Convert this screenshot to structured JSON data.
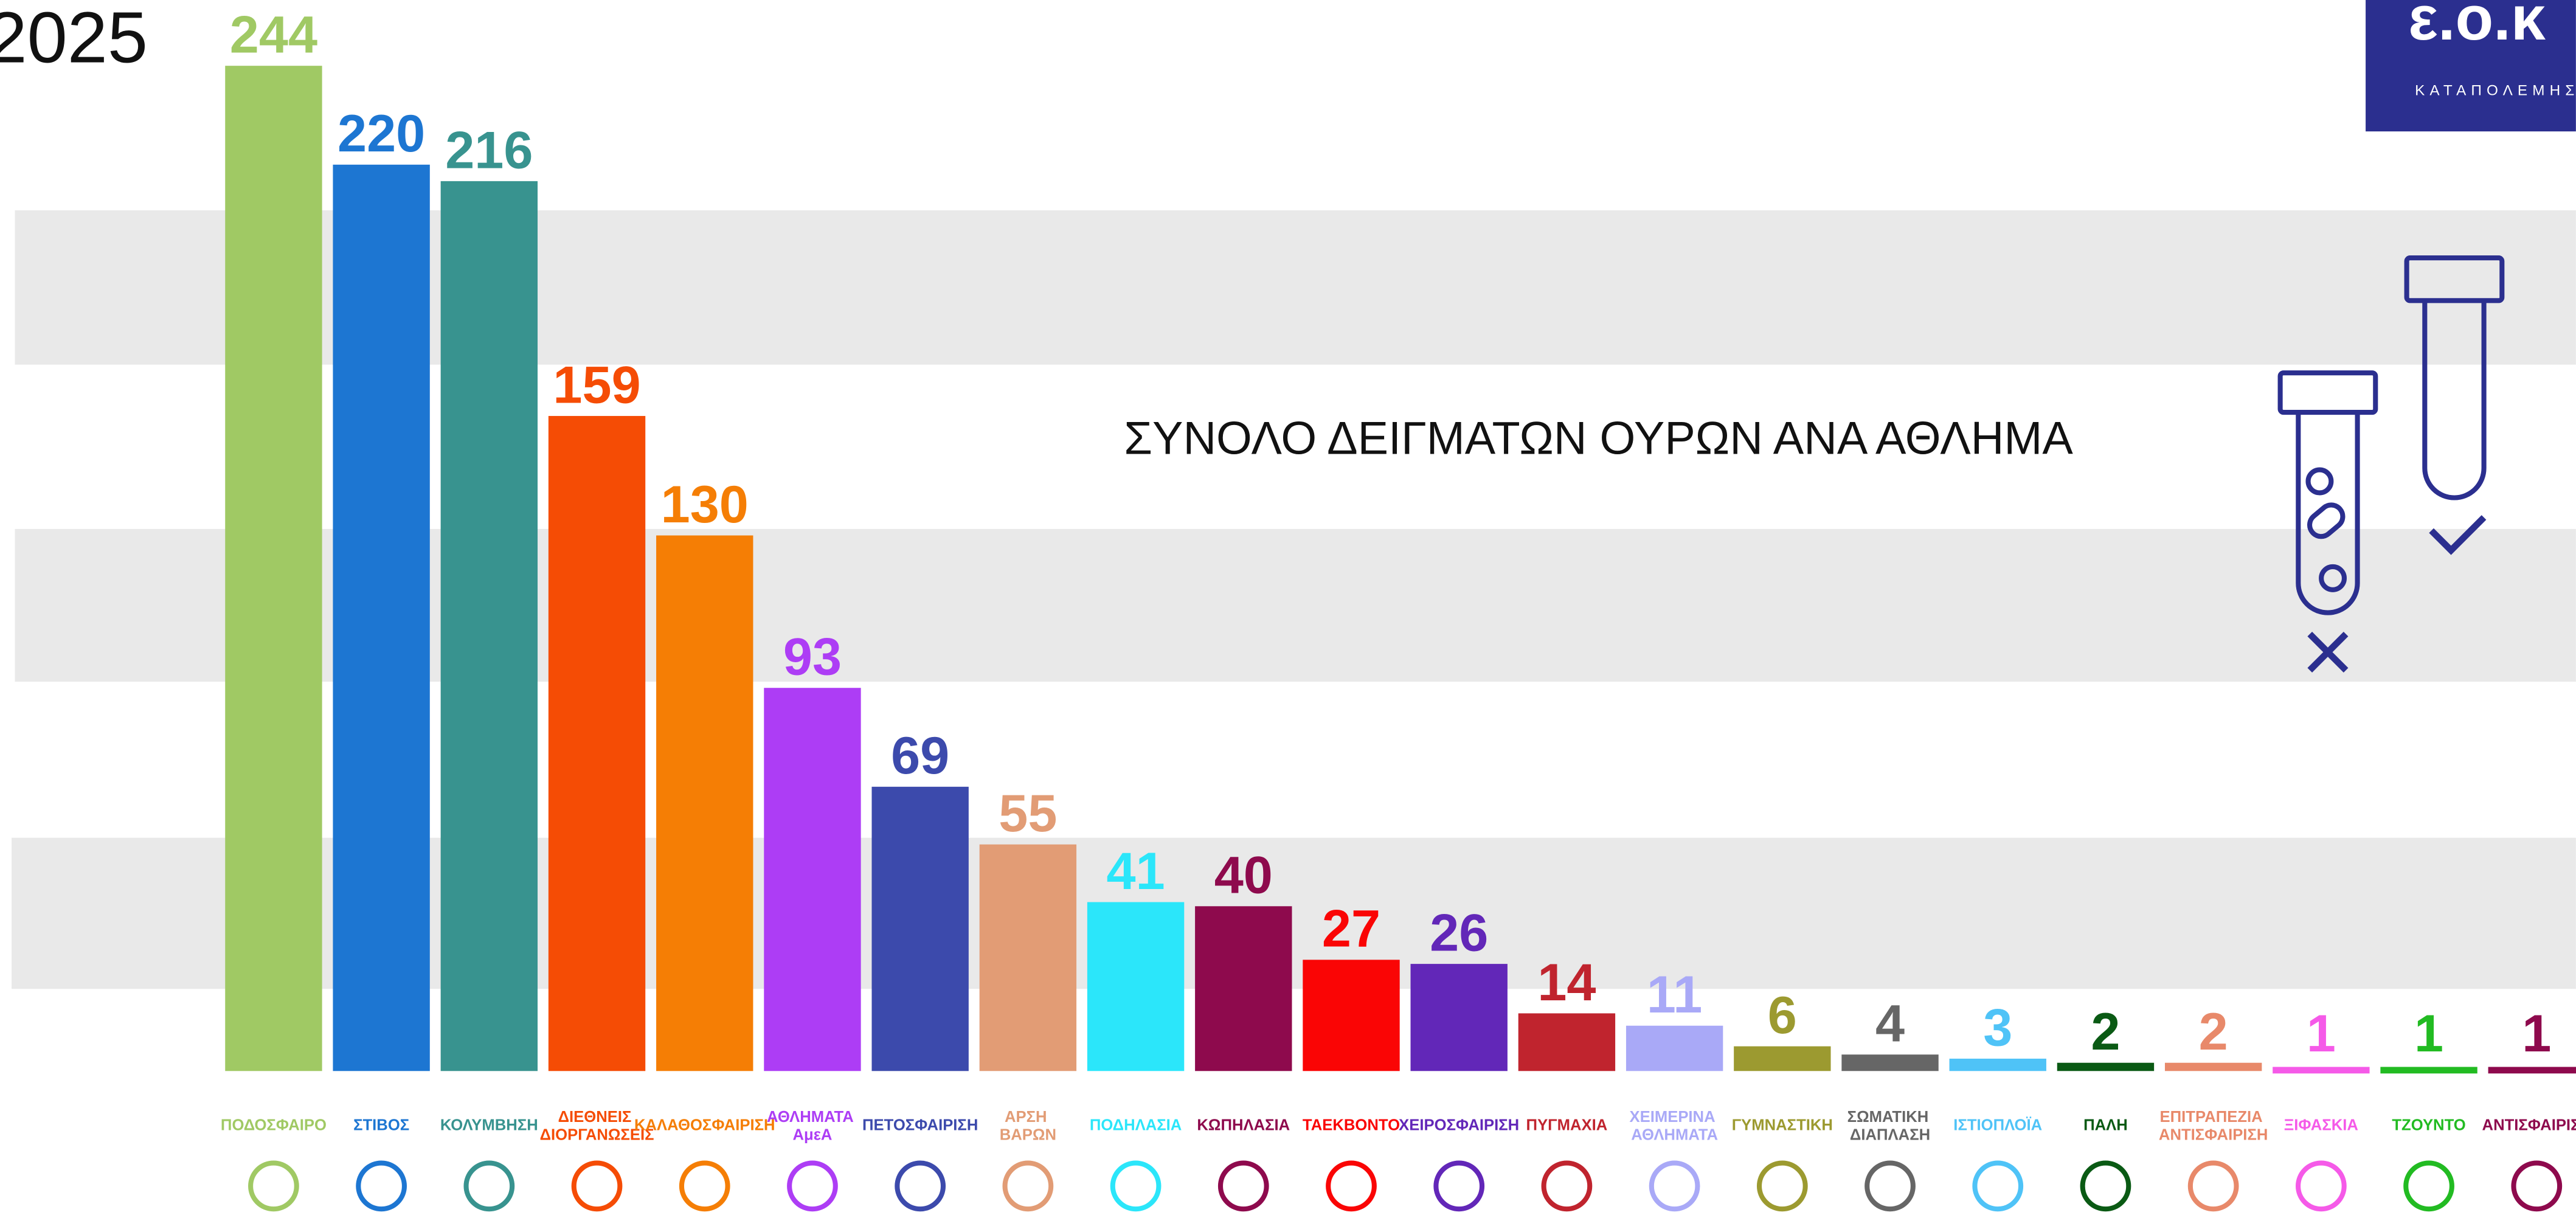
{
  "year": "2025",
  "logo": {
    "title": "ε.ο.κ",
    "subtitle": "ΚΑΤΑΠΟΛΕΜΗΣ"
  },
  "chart_data": {
    "type": "bar",
    "title": "ΣΥΝΟΛΟ ΔΕΙΓΜΑΤΩΝ ΟΥΡΩΝ ΑΝΑ ΑΘΛΗΜΑ",
    "categories": [
      "ΠΟΔΟΣΦΑΙΡΟ",
      "ΣΤΙΒΟΣ",
      "ΚΟΛΥΜΒΗΣΗ",
      "ΔΙΕΘΝΕΙΣ ΔΙΟΡΓΑΝΩΣΕΙΣ",
      "ΚΑΛΑΘΟΣΦΑΙΡΙΣΗ",
      "ΑΘΛΗΜΑΤΑ ΑμεΑ",
      "ΠΕΤΟΣΦΑΙΡΙΣΗ",
      "ΑΡΣΗ ΒΑΡΩΝ",
      "ΠΟΔΗΛΑΣΙΑ",
      "ΚΩΠΗΛΑΣΙΑ",
      "ΤΑΕΚΒΟΝΤΟ",
      "ΧΕΙΡΟΣΦΑΙΡΙΣΗ",
      "ΠΥΓΜΑΧΙΑ",
      "ΧΕΙΜΕΡΙΝΑ ΑΘΛΗΜΑΤΑ",
      "ΓΥΜΝΑΣΤΙΚΗ",
      "ΣΩΜΑΤΙΚΗ ΔΙΑΠΛΑΣΗ",
      "ΙΣΤΙΟΠΛΟΪΑ",
      "ΠΑΛΗ",
      "ΕΠΙΤΡΑΠΕΖΙΑ ΑΝΤΙΣΦΑΙΡΙΣΗ",
      "ΞΙΦΑΣΚΙΑ",
      "ΤΖΟΥΝΤΟ",
      "ΑΝΤΙΣΦΑΙΡΙΣΗ"
    ],
    "values": [
      244,
      220,
      216,
      159,
      130,
      93,
      69,
      55,
      41,
      40,
      27,
      26,
      14,
      11,
      6,
      4,
      3,
      2,
      2,
      1,
      1,
      1
    ],
    "colors": [
      "#a0c964",
      "#1d76d2",
      "#38938f",
      "#f54c05",
      "#f57e05",
      "#ad3df5",
      "#3c4aac",
      "#e29c75",
      "#2be6fa",
      "#8e0a4d",
      "#fa0505",
      "#6227b8",
      "#c0242e",
      "#a9a9f7",
      "#9c9a30",
      "#666666",
      "#4fc3f7",
      "#0a5a14",
      "#e8896a",
      "#f55ae8",
      "#22bb22",
      "#8e0a4d"
    ]
  }
}
